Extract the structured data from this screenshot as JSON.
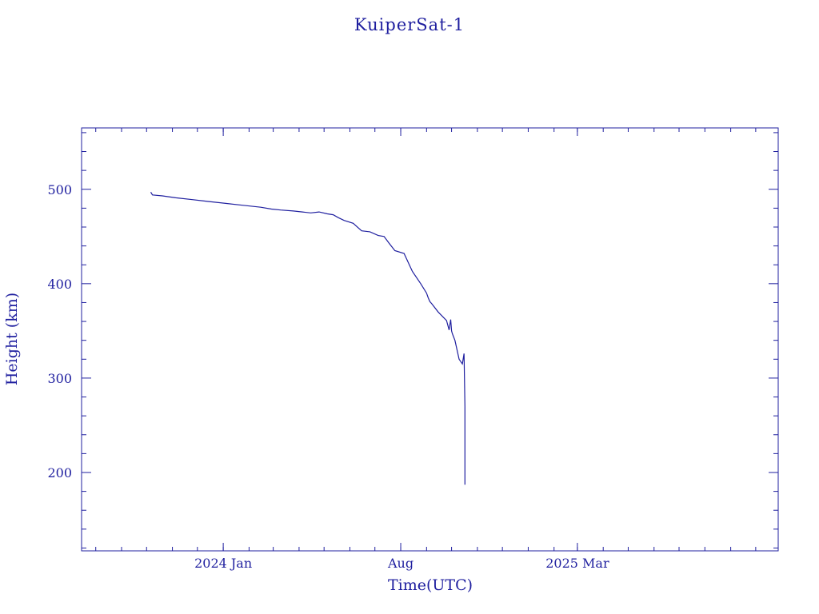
{
  "chart_data": {
    "type": "line",
    "title": "KuiperSat-1",
    "xlabel": "Time(UTC)",
    "ylabel": "Height (km)",
    "x_axis_type": "date",
    "xlim": [
      "2023-07-15",
      "2025-10-28"
    ],
    "ylim": [
      117,
      565
    ],
    "x_ticks": [
      {
        "date": "2024-01-01",
        "label": "2024 Jan"
      },
      {
        "date": "2024-08-01",
        "label": "Aug"
      },
      {
        "date": "2025-03-01",
        "label": "2025 Mar"
      }
    ],
    "y_ticks": [
      200,
      300,
      400,
      500
    ],
    "grid": false,
    "color": "#1f1f9f",
    "series": [
      {
        "x": [
          "2023-10-06",
          "2023-10-08",
          "2023-10-20",
          "2023-11-05",
          "2023-11-25",
          "2023-12-15",
          "2024-01-05",
          "2024-01-25",
          "2024-02-15",
          "2024-02-28",
          "2024-03-10",
          "2024-03-25",
          "2024-04-05",
          "2024-04-15",
          "2024-04-25",
          "2024-05-05",
          "2024-05-12",
          "2024-05-18",
          "2024-05-25",
          "2024-06-05",
          "2024-06-15",
          "2024-06-25",
          "2024-07-05",
          "2024-07-12",
          "2024-07-18",
          "2024-07-25",
          "2024-08-05",
          "2024-08-15",
          "2024-08-25",
          "2024-09-01",
          "2024-09-03",
          "2024-09-05",
          "2024-09-07",
          "2024-09-15",
          "2024-09-25",
          "2024-09-28",
          "2024-09-30",
          "2024-10-01",
          "2024-10-02",
          "2024-10-05",
          "2024-10-10",
          "2024-10-14",
          "2024-10-16",
          "2024-10-17",
          "2024-10-17"
        ],
        "y": [
          497,
          494,
          493,
          491,
          489,
          487,
          485,
          483,
          481,
          479,
          478,
          477,
          476,
          475,
          476,
          474,
          473,
          470,
          467,
          464,
          456,
          455,
          451,
          450,
          443,
          435,
          432,
          413,
          400,
          390,
          385,
          381,
          379,
          370,
          361,
          351,
          362,
          350,
          347,
          340,
          320,
          315,
          326,
          270,
          187
        ]
      }
    ]
  }
}
